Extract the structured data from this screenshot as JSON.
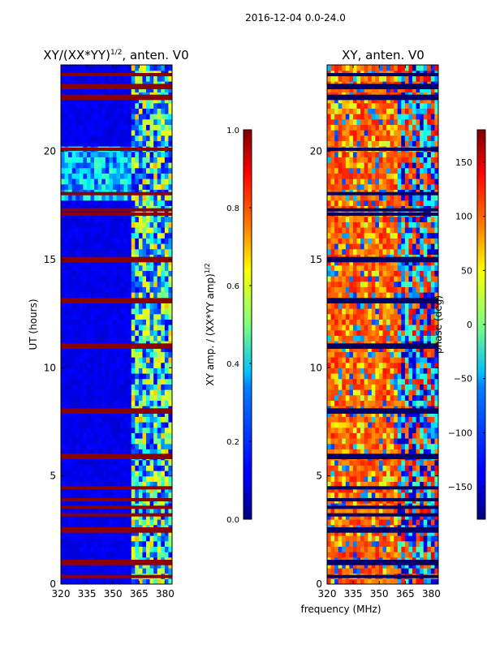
{
  "figure": {
    "suptitle": "2016-12-04 0.0-24.0",
    "shared_xlabel": "frequency (MHz)"
  },
  "chart_data": [
    {
      "type": "heatmap",
      "title_base": "XY/(XX*YY)",
      "title_sup": "1/2",
      "title_suffix": ", anten. V0",
      "xlabel": "",
      "ylabel": "UT (hours)",
      "xlim": [
        320,
        384
      ],
      "ylim": [
        0,
        24
      ],
      "xticks": [
        320,
        335,
        350,
        365,
        380
      ],
      "yticks": [
        0,
        5,
        10,
        15,
        20
      ],
      "colormap": "jet",
      "colorbar": {
        "label_base": "XY amp. / (XX*YY amp)",
        "label_sup": "1/2",
        "range": [
          0.0,
          1.0
        ],
        "ticks": [
          0.0,
          0.2,
          0.4,
          0.6,
          0.8,
          1.0
        ],
        "tick_labels": [
          "0.0",
          "0.2",
          "0.4",
          "0.6",
          "0.8",
          "1.0"
        ]
      },
      "features": {
        "background_value": 0.08,
        "high_band_start_mhz": 361,
        "flagged_rows_hours": [
          0.35,
          0.95,
          1.05,
          2.45,
          2.55,
          3.2,
          3.55,
          3.9,
          4.45,
          5.85,
          5.95,
          7.95,
          8.05,
          10.95,
          11.05,
          13.05,
          13.15,
          14.95,
          15.05,
          17.1,
          17.3,
          18.05,
          20.1,
          22.45,
          22.55,
          22.95,
          23.05,
          23.55
        ]
      }
    },
    {
      "type": "heatmap",
      "title": "XY, anten. V0",
      "xlabel": "",
      "ylabel": "",
      "xlim": [
        320,
        384
      ],
      "ylim": [
        0,
        24
      ],
      "xticks": [
        320,
        335,
        350,
        365,
        380
      ],
      "yticks": [
        0,
        5,
        10,
        15,
        20
      ],
      "colormap": "jet",
      "colorbar": {
        "label": "phase (deg)",
        "range": [
          -180,
          180
        ],
        "ticks": [
          -150,
          -100,
          -50,
          0,
          50,
          100,
          150
        ],
        "tick_labels": [
          "−150",
          "−100",
          "−50",
          "0",
          "50",
          "100",
          "150"
        ]
      },
      "features": {
        "dominant_phase_deg": 100,
        "flagged_rows_hours": [
          0.35,
          0.95,
          1.05,
          2.45,
          2.55,
          3.2,
          3.55,
          3.9,
          4.45,
          5.85,
          5.95,
          7.95,
          8.05,
          10.95,
          11.05,
          13.05,
          13.15,
          14.95,
          15.05,
          17.1,
          17.3,
          18.05,
          20.1,
          22.45,
          22.55,
          22.95,
          23.05,
          23.55
        ]
      }
    }
  ]
}
